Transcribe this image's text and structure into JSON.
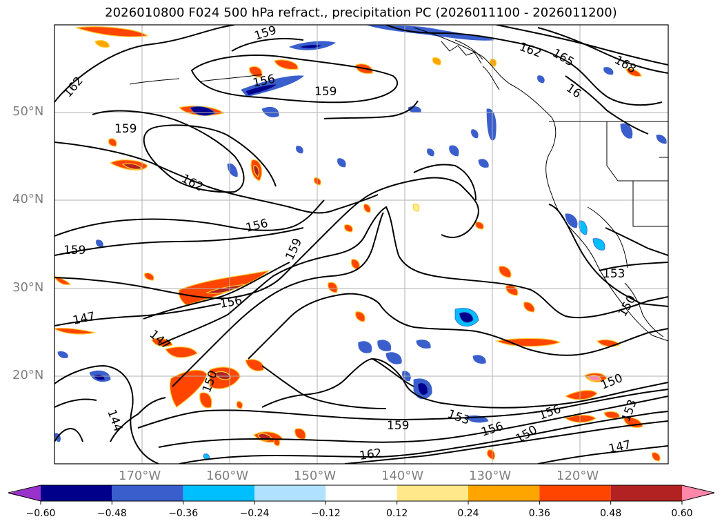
{
  "title": "2026010800 F024 500 hPa refract., precipitation PC (2026011100 - 2026011200)",
  "map": {
    "extent": {
      "lon_min": -180,
      "lon_max": -110,
      "lat_min": 10,
      "lat_max": 60
    },
    "lat_labels": [
      "50°N",
      "40°N",
      "30°N",
      "20°N"
    ],
    "lon_labels": [
      "170°W",
      "160°W",
      "150°W",
      "140°W",
      "130°W",
      "120°W"
    ],
    "contour_labels": [
      "159",
      "162",
      "156",
      "159",
      "159",
      "162",
      "156",
      "159",
      "159",
      "156",
      "147",
      "147",
      "150",
      "144",
      "159",
      "162",
      "153",
      "156",
      "156",
      "150",
      "150",
      "153",
      "147",
      "153",
      "150",
      "162",
      "165",
      "168",
      "16"
    ],
    "colors": {
      "neg_levels": [
        "#9932cc",
        "#00008b",
        "#3a5fcd",
        "#00bfff",
        "#b0e2ff"
      ],
      "pos_levels": [
        "#fff08a",
        "#ffa500",
        "#ff4500",
        "#b22222",
        "#ff88aa"
      ]
    }
  },
  "colorbar": {
    "ticks": [
      "−0.60",
      "−0.48",
      "−0.36",
      "−0.24",
      "−0.12",
      "0.12",
      "0.24",
      "0.36",
      "0.48",
      "0.60"
    ],
    "segments": [
      "#9932cc",
      "#00008b",
      "#3a5fcd",
      "#00bfff",
      "#b0e2ff",
      "#ffffff",
      "#ffe88a",
      "#ffa500",
      "#ff4500",
      "#b22222",
      "#ff88aa"
    ]
  }
}
